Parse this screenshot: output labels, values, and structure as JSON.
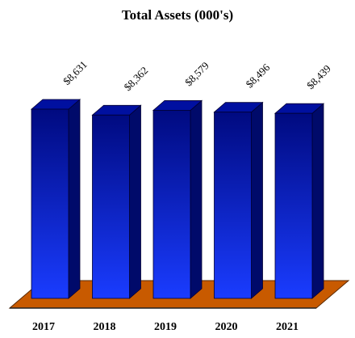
{
  "chart_data": {
    "type": "bar3d",
    "title": "Total Assets (000's)",
    "categories": [
      "2017",
      "2018",
      "2019",
      "2020",
      "2021"
    ],
    "values": [
      8631,
      8362,
      8579,
      8496,
      8439
    ],
    "value_labels": [
      "$8,631",
      "$8,362",
      "$8,579",
      "$8,496",
      "$8,439"
    ],
    "color": "#0000ee",
    "ylim": [
      0,
      9000
    ]
  }
}
